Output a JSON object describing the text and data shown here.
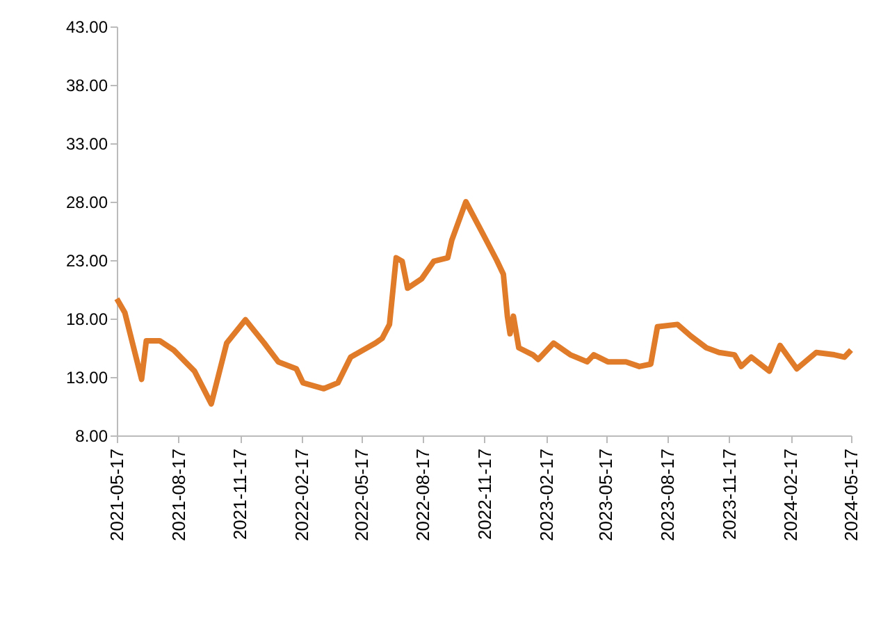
{
  "chart_data": {
    "type": "line",
    "color": "#e07b2a",
    "x": [
      "2021-05-17",
      "2021-05-29",
      "2021-06-23",
      "2021-06-30",
      "2021-07-20",
      "2021-08-10",
      "2021-09-10",
      "2021-10-05",
      "2021-10-28",
      "2021-11-25",
      "2021-12-23",
      "2022-01-13",
      "2022-02-09",
      "2022-02-19",
      "2022-03-22",
      "2022-04-12",
      "2022-05-01",
      "2022-06-07",
      "2022-06-17",
      "2022-06-28",
      "2022-07-08",
      "2022-07-17",
      "2022-07-25",
      "2022-08-15",
      "2022-09-02",
      "2022-09-23",
      "2022-09-29",
      "2022-10-20",
      "2022-11-14",
      "2022-12-05",
      "2022-12-15",
      "2022-12-21",
      "2022-12-25",
      "2022-12-30",
      "2023-01-07",
      "2023-01-28",
      "2023-02-05",
      "2023-02-28",
      "2023-03-25",
      "2023-04-19",
      "2023-04-29",
      "2023-05-20",
      "2023-06-16",
      "2023-07-06",
      "2023-07-23",
      "2023-08-02",
      "2023-09-01",
      "2023-09-21",
      "2023-10-14",
      "2023-11-02",
      "2023-11-25",
      "2023-12-05",
      "2023-12-20",
      "2024-01-16",
      "2024-02-01",
      "2024-02-26",
      "2024-03-26",
      "2024-04-22",
      "2024-05-07",
      "2024-05-17"
    ],
    "values": [
      19.7,
      18.5,
      12.8,
      16.1,
      16.1,
      15.3,
      13.5,
      10.7,
      15.9,
      17.9,
      15.9,
      14.3,
      13.7,
      12.5,
      12.0,
      12.5,
      14.7,
      15.9,
      16.3,
      17.5,
      23.2,
      22.9,
      20.6,
      21.4,
      22.9,
      23.2,
      24.7,
      28.0,
      25.3,
      23.0,
      21.8,
      18.2,
      16.7,
      18.2,
      15.5,
      14.9,
      14.5,
      15.9,
      14.9,
      14.3,
      14.9,
      14.3,
      14.3,
      13.9,
      14.1,
      17.3,
      17.5,
      16.5,
      15.5,
      15.1,
      14.9,
      13.9,
      14.7,
      13.5,
      15.7,
      13.7,
      15.1,
      14.9,
      14.7,
      15.3
    ],
    "xlim": [
      "2021-05-17",
      "2024-05-17"
    ],
    "xticks": [
      "2021-05-17",
      "2021-08-17",
      "2021-11-17",
      "2022-02-17",
      "2022-05-17",
      "2022-08-17",
      "2022-11-17",
      "2023-02-17",
      "2023-05-17",
      "2023-08-17",
      "2023-11-17",
      "2024-02-17",
      "2024-05-17"
    ],
    "ylim": [
      8,
      43
    ],
    "yticks": [
      {
        "value": 8,
        "label": "8.00"
      },
      {
        "value": 13,
        "label": "13.00"
      },
      {
        "value": 18,
        "label": "18.00"
      },
      {
        "value": 23,
        "label": "23.00"
      },
      {
        "value": 28,
        "label": "28.00"
      },
      {
        "value": 33,
        "label": "33.00"
      },
      {
        "value": 38,
        "label": "38.00"
      },
      {
        "value": 43,
        "label": "43.00"
      }
    ],
    "grid": false
  }
}
